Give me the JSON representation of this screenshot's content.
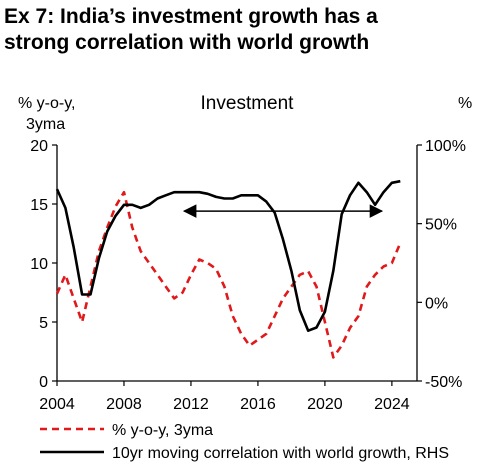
{
  "title": {
    "line1": "Ex 7: India’s investment growth has a",
    "line2": "strong correlation with world growth"
  },
  "chart_data": {
    "type": "line",
    "panel_title": "Investment",
    "left_axis": {
      "label_line1": "% y-o-y,",
      "label_line2": "3yma",
      "ylim": [
        0,
        20
      ],
      "ticks": [
        "0",
        "5",
        "10",
        "15",
        "20"
      ]
    },
    "right_axis": {
      "label": "%",
      "ylim": [
        -50,
        100
      ],
      "ticks": [
        "-50%",
        "0%",
        "50%",
        "100%"
      ]
    },
    "x_axis": {
      "xlim": [
        2004,
        2025.5
      ],
      "ticks": [
        "2004",
        "2008",
        "2012",
        "2016",
        "2020",
        "2024"
      ]
    },
    "grid": false,
    "legend_position": "bottom",
    "series": [
      {
        "name": "% y-o-y, 3yma",
        "axis": "left",
        "color": "#e0191b",
        "style": "dashed",
        "points": [
          [
            2004,
            7.4
          ],
          [
            2004.5,
            9.0
          ],
          [
            2005,
            7.0
          ],
          [
            2005.5,
            5.0
          ],
          [
            2006,
            8.0
          ],
          [
            2006.5,
            11.0
          ],
          [
            2007,
            13.0
          ],
          [
            2007.5,
            14.8
          ],
          [
            2008,
            16.0
          ],
          [
            2008.5,
            13.0
          ],
          [
            2009,
            11.0
          ],
          [
            2009.5,
            10.0
          ],
          [
            2010,
            9.0
          ],
          [
            2010.5,
            8.0
          ],
          [
            2011,
            7.0
          ],
          [
            2011.5,
            7.5
          ],
          [
            2012,
            9.0
          ],
          [
            2012.5,
            10.3
          ],
          [
            2013,
            10.0
          ],
          [
            2013.5,
            9.5
          ],
          [
            2014,
            8.0
          ],
          [
            2014.5,
            5.5
          ],
          [
            2015,
            4.0
          ],
          [
            2015.5,
            3.0
          ],
          [
            2016,
            3.5
          ],
          [
            2016.5,
            4.0
          ],
          [
            2017,
            5.5
          ],
          [
            2017.5,
            7.0
          ],
          [
            2018,
            8.0
          ],
          [
            2018.5,
            9.0
          ],
          [
            2019,
            9.3
          ],
          [
            2019.5,
            8.0
          ],
          [
            2020,
            5.0
          ],
          [
            2020.5,
            2.0
          ],
          [
            2021,
            3.0
          ],
          [
            2021.5,
            4.5
          ],
          [
            2022,
            5.5
          ],
          [
            2022.5,
            8.0
          ],
          [
            2023,
            9.0
          ],
          [
            2023.5,
            9.7
          ],
          [
            2024,
            10.0
          ],
          [
            2024.5,
            11.7
          ]
        ]
      },
      {
        "name": "10yr moving correlation with world growth, RHS",
        "axis": "right",
        "color": "#000000",
        "style": "solid",
        "points": [
          [
            2004,
            72
          ],
          [
            2004.5,
            60
          ],
          [
            2005,
            35
          ],
          [
            2005.5,
            5
          ],
          [
            2006,
            5
          ],
          [
            2006.5,
            28
          ],
          [
            2007,
            45
          ],
          [
            2007.5,
            55
          ],
          [
            2008,
            62
          ],
          [
            2008.5,
            62
          ],
          [
            2009,
            60
          ],
          [
            2009.5,
            62
          ],
          [
            2010,
            66
          ],
          [
            2010.5,
            68
          ],
          [
            2011,
            70
          ],
          [
            2011.5,
            70
          ],
          [
            2012,
            70
          ],
          [
            2012.5,
            70
          ],
          [
            2013,
            69
          ],
          [
            2013.5,
            67
          ],
          [
            2014,
            66
          ],
          [
            2014.5,
            66
          ],
          [
            2015,
            68
          ],
          [
            2015.5,
            68
          ],
          [
            2016,
            68
          ],
          [
            2016.5,
            64
          ],
          [
            2017,
            57
          ],
          [
            2017.5,
            40
          ],
          [
            2018,
            20
          ],
          [
            2018.5,
            -5
          ],
          [
            2019,
            -18
          ],
          [
            2019.5,
            -16
          ],
          [
            2020,
            -6
          ],
          [
            2020.5,
            20
          ],
          [
            2021,
            56
          ],
          [
            2021.5,
            68
          ],
          [
            2022,
            76
          ],
          [
            2022.5,
            70
          ],
          [
            2023,
            62
          ],
          [
            2023.5,
            70
          ],
          [
            2024,
            76
          ],
          [
            2024.5,
            77
          ]
        ]
      }
    ],
    "annotation": {
      "type": "double-arrow",
      "from": [
        2011.6,
        58
      ],
      "to": [
        2023.4,
        58
      ]
    }
  },
  "legend": {
    "item1": "% y-o-y, 3yma",
    "item2": "10yr moving correlation with world growth, RHS"
  }
}
